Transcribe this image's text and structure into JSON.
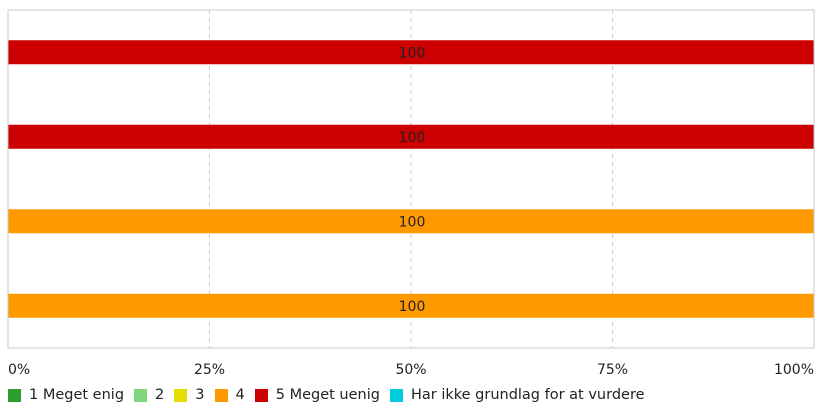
{
  "chart_data": {
    "type": "bar",
    "orientation": "horizontal",
    "stacked": true,
    "x_ticks": [
      "0%",
      "25%",
      "50%",
      "75%",
      "100%"
    ],
    "xlim": [
      0,
      100
    ],
    "grid": true,
    "legend_position": "bottom",
    "categories": [
      "",
      "",
      "",
      ""
    ],
    "series": [
      {
        "name": "1 Meget enig",
        "color": "#2e9e2e",
        "values": [
          0,
          0,
          0,
          0
        ]
      },
      {
        "name": "2",
        "color": "#7fd67f",
        "values": [
          0,
          0,
          0,
          0
        ]
      },
      {
        "name": "3",
        "color": "#e6dc00",
        "values": [
          0,
          0,
          0,
          0
        ]
      },
      {
        "name": "4",
        "color": "#ff9900",
        "values": [
          0,
          0,
          100,
          100
        ]
      },
      {
        "name": "5 Meget uenig",
        "color": "#cc0000",
        "values": [
          100,
          100,
          0,
          0
        ]
      },
      {
        "name": "Har ikke grundlag for  at vurdere",
        "color": "#00ccdd",
        "values": [
          0,
          0,
          0,
          0
        ]
      }
    ],
    "data_labels": [
      "100",
      "100",
      "100",
      "100"
    ]
  }
}
